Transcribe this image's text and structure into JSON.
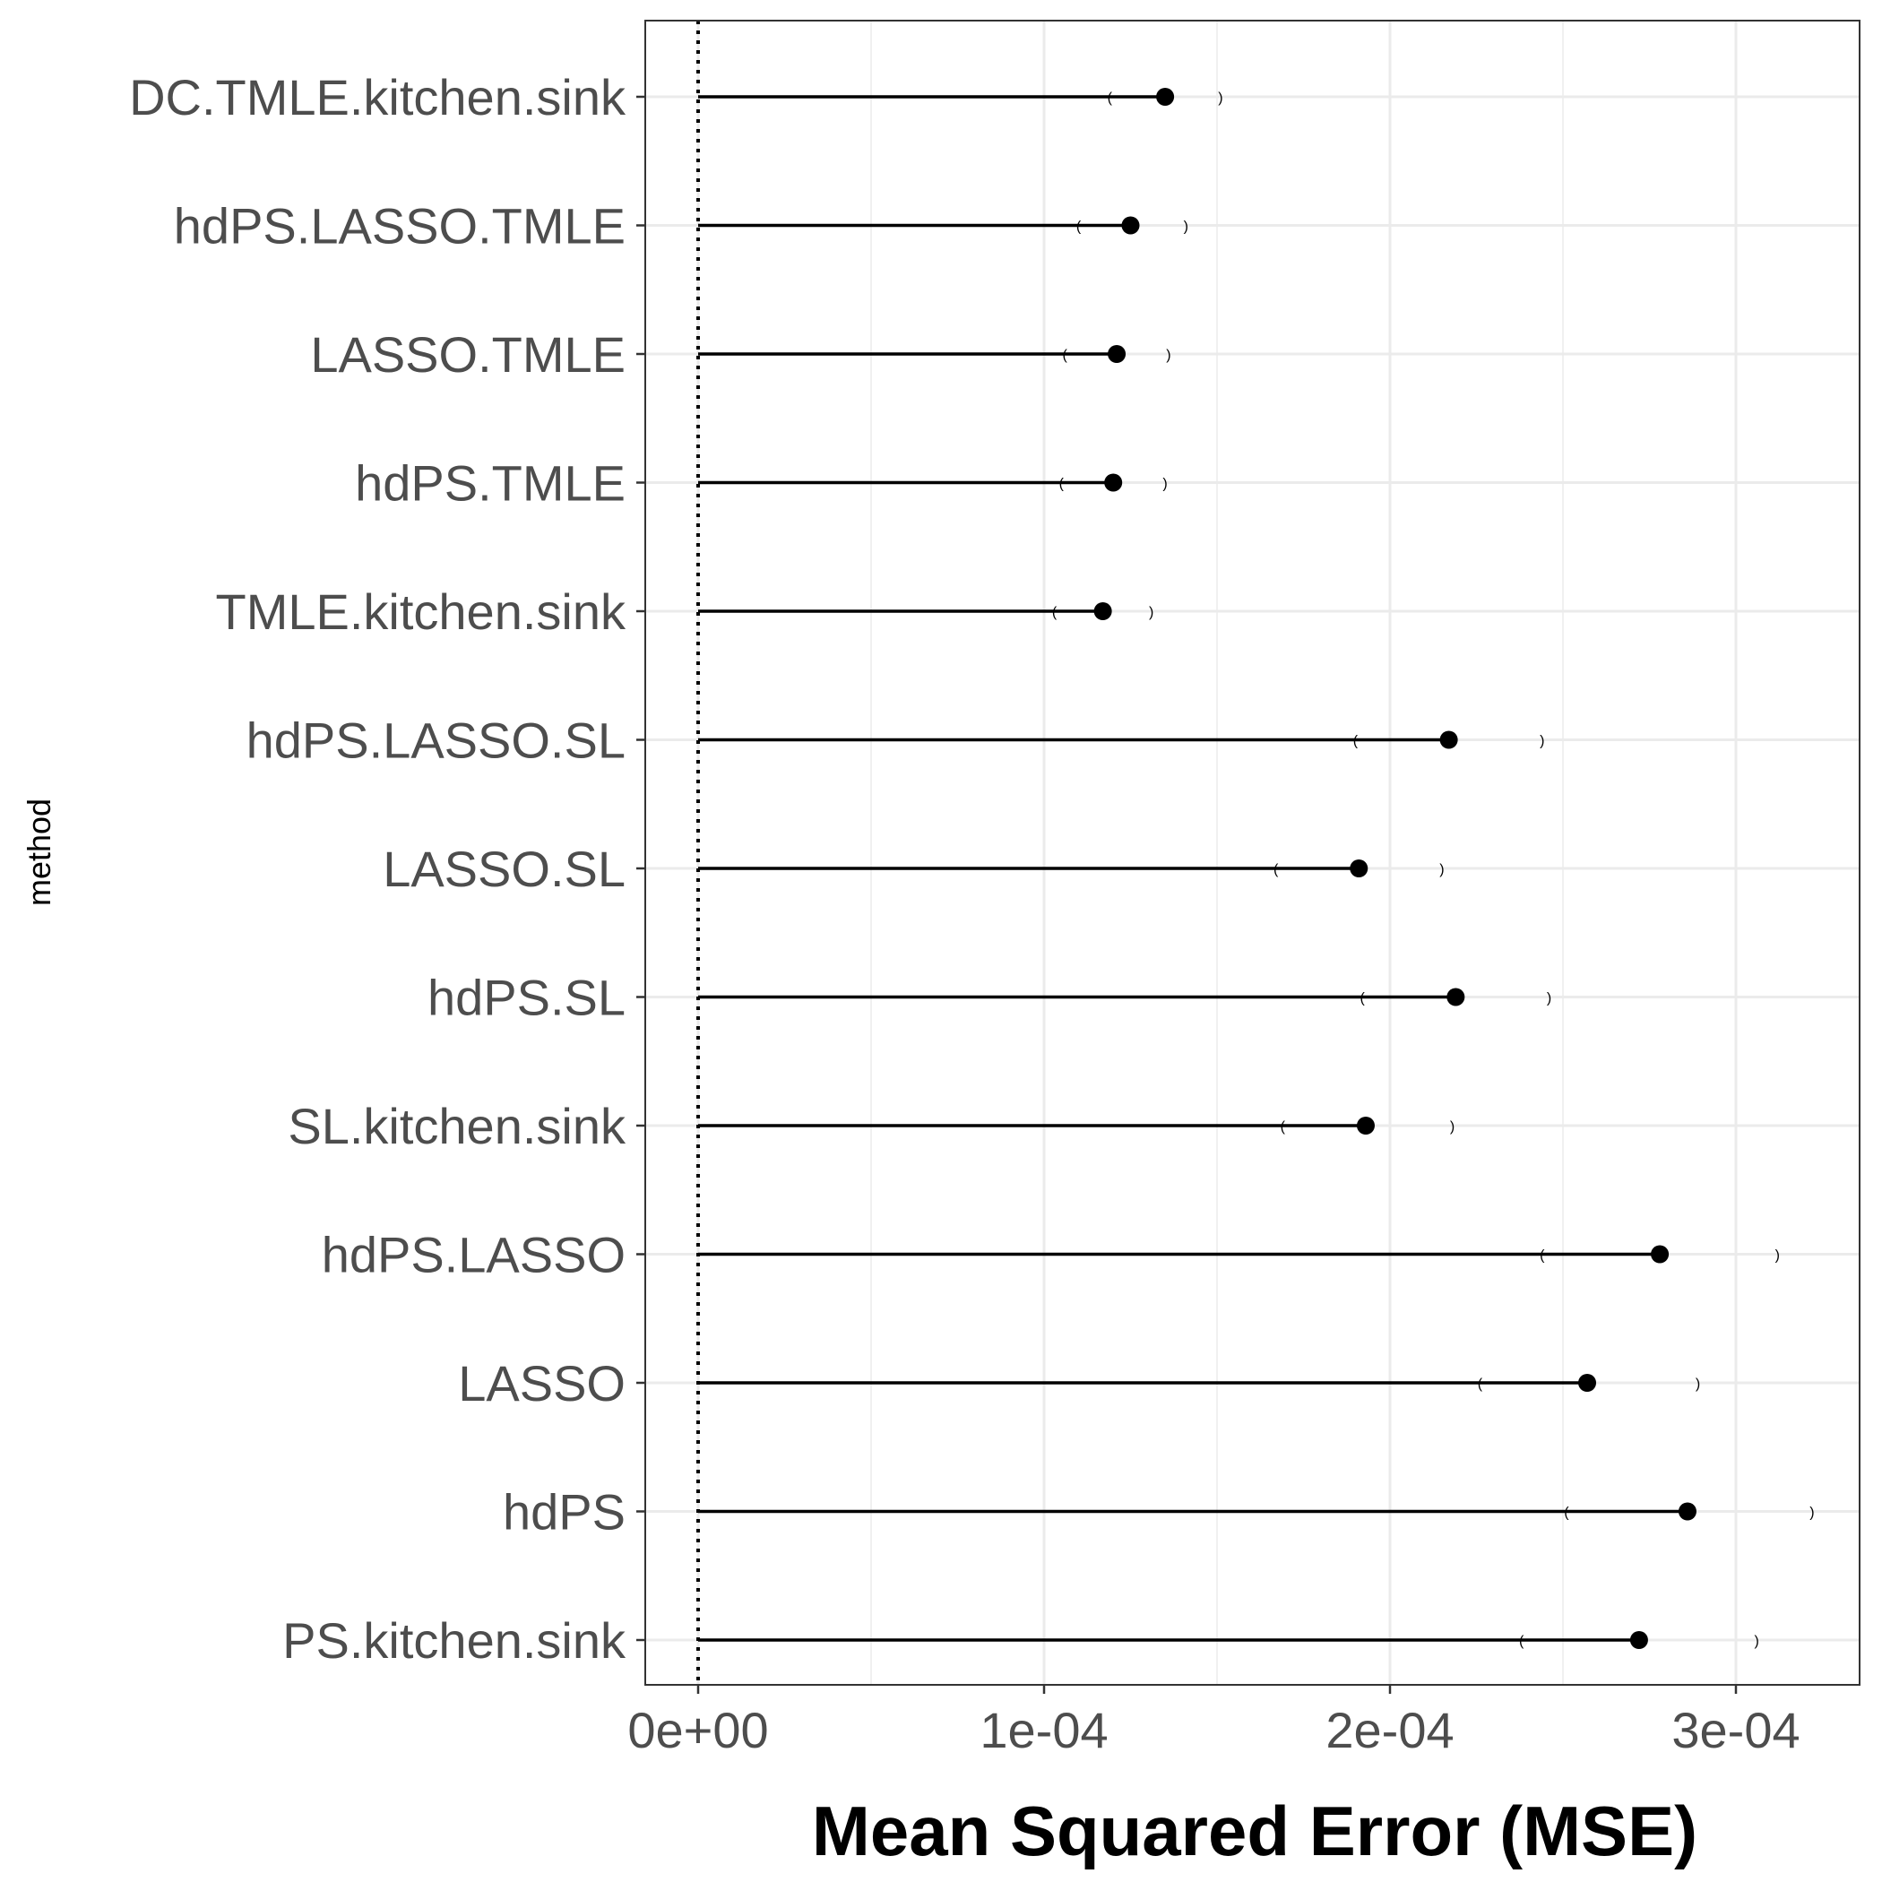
{
  "chart_data": {
    "type": "lollipop",
    "xlabel": "Mean Squared Error (MSE)",
    "ylabel": "method",
    "xlim": [
      -1.5e-05,
      0.000335
    ],
    "x_ticks": [
      {
        "value": 0,
        "label": "0e+00"
      },
      {
        "value": 0.0001,
        "label": "1e-04"
      },
      {
        "value": 0.0002,
        "label": "2e-04"
      },
      {
        "value": 0.0003,
        "label": "3e-04"
      }
    ],
    "x_minor_ticks": [
      5e-05,
      0.00015,
      0.00025
    ],
    "reference_line": 0,
    "grid": true,
    "ci_open_symbol": "(",
    "ci_close_symbol": ")",
    "categories": [
      {
        "name": "DC.TMLE.kitchen.sink",
        "mse": 0.000135,
        "ci_low": 0.000119,
        "ci_high": 0.000151
      },
      {
        "name": "hdPS.LASSO.TMLE",
        "mse": 0.000125,
        "ci_low": 0.00011,
        "ci_high": 0.000141
      },
      {
        "name": "LASSO.TMLE",
        "mse": 0.000121,
        "ci_low": 0.000106,
        "ci_high": 0.000136
      },
      {
        "name": "hdPS.TMLE",
        "mse": 0.00012,
        "ci_low": 0.000105,
        "ci_high": 0.000135
      },
      {
        "name": "TMLE.kitchen.sink",
        "mse": 0.000117,
        "ci_low": 0.000103,
        "ci_high": 0.000131
      },
      {
        "name": "hdPS.LASSO.SL",
        "mse": 0.000217,
        "ci_low": 0.00019,
        "ci_high": 0.000244
      },
      {
        "name": "LASSO.SL",
        "mse": 0.000191,
        "ci_low": 0.000167,
        "ci_high": 0.000215
      },
      {
        "name": "hdPS.SL",
        "mse": 0.000219,
        "ci_low": 0.000192,
        "ci_high": 0.000246
      },
      {
        "name": "SL.kitchen.sink",
        "mse": 0.000193,
        "ci_low": 0.000169,
        "ci_high": 0.000218
      },
      {
        "name": "hdPS.LASSO",
        "mse": 0.000278,
        "ci_low": 0.000244,
        "ci_high": 0.000312
      },
      {
        "name": "LASSO",
        "mse": 0.000257,
        "ci_low": 0.000226,
        "ci_high": 0.000289
      },
      {
        "name": "hdPS",
        "mse": 0.000286,
        "ci_low": 0.000251,
        "ci_high": 0.000322
      },
      {
        "name": "PS.kitchen.sink",
        "mse": 0.000272,
        "ci_low": 0.000238,
        "ci_high": 0.000306
      }
    ]
  }
}
